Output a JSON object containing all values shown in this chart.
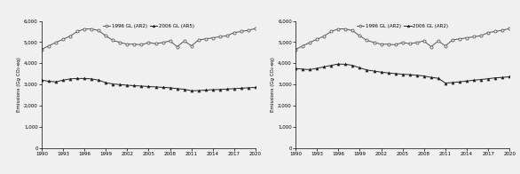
{
  "years": [
    1990,
    1991,
    1992,
    1993,
    1994,
    1995,
    1996,
    1997,
    1998,
    1999,
    2000,
    2001,
    2002,
    2003,
    2004,
    2005,
    2006,
    2007,
    2008,
    2009,
    2010,
    2011,
    2012,
    2013,
    2014,
    2015,
    2016,
    2017,
    2018,
    2019,
    2020
  ],
  "left": {
    "legend1": "1996 GL (AR2)",
    "legend2": "2006 GL (AR5)",
    "upper": [
      4650,
      4820,
      4980,
      5130,
      5280,
      5500,
      5620,
      5620,
      5540,
      5290,
      5080,
      4980,
      4900,
      4900,
      4870,
      4980,
      4920,
      4980,
      5050,
      4780,
      5050,
      4820,
      5100,
      5150,
      5200,
      5250,
      5300,
      5450,
      5500,
      5560,
      5640
    ],
    "lower": [
      3200,
      3150,
      3120,
      3200,
      3260,
      3280,
      3280,
      3260,
      3200,
      3080,
      3020,
      2990,
      2960,
      2940,
      2920,
      2900,
      2880,
      2860,
      2840,
      2800,
      2770,
      2700,
      2710,
      2730,
      2750,
      2760,
      2780,
      2800,
      2820,
      2840,
      2860
    ]
  },
  "right": {
    "legend1": "1996 GL (AR2)",
    "legend2": "2006 GL (AR2)",
    "upper": [
      4650,
      4820,
      4980,
      5130,
      5280,
      5500,
      5620,
      5620,
      5540,
      5290,
      5080,
      4980,
      4900,
      4900,
      4870,
      4980,
      4920,
      4980,
      5050,
      4780,
      5050,
      4820,
      5100,
      5150,
      5200,
      5250,
      5300,
      5450,
      5500,
      5560,
      5640
    ],
    "lower": [
      3750,
      3720,
      3700,
      3760,
      3830,
      3900,
      3960,
      3950,
      3900,
      3780,
      3680,
      3630,
      3580,
      3540,
      3510,
      3480,
      3460,
      3430,
      3400,
      3330,
      3290,
      3060,
      3090,
      3120,
      3160,
      3200,
      3230,
      3270,
      3310,
      3330,
      3360
    ]
  },
  "ylabel": "Emissions (Gg CO₂-eq)",
  "ylim": [
    0,
    6000
  ],
  "yticks": [
    0,
    1000,
    2000,
    3000,
    4000,
    5000,
    6000
  ],
  "xticks": [
    1990,
    1993,
    1996,
    1999,
    2002,
    2005,
    2008,
    2011,
    2014,
    2017,
    2020
  ],
  "line_color": "#555555",
  "bg_color": "#f0f0f0"
}
